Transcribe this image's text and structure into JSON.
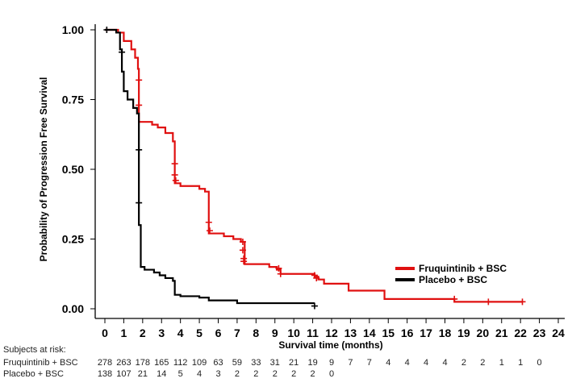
{
  "chart_data": {
    "type": "line",
    "subtype": "kaplan-meier",
    "xlabel": "Survival time (months)",
    "ylabel": "Probability of Progression Free Survival",
    "xlim": [
      0,
      24
    ],
    "ylim": [
      0,
      1
    ],
    "x_ticks": [
      "0",
      "1",
      "2",
      "3",
      "4",
      "5",
      "6",
      "7",
      "8",
      "9",
      "10",
      "11",
      "12",
      "13",
      "14",
      "15",
      "16",
      "17",
      "18",
      "19",
      "20",
      "21",
      "22",
      "23",
      "24"
    ],
    "y_ticks": [
      "0.00",
      "0.25",
      "0.50",
      "0.75",
      "1.00"
    ],
    "legend_position": "right",
    "series": [
      {
        "name": "Fruquintinib + BSC",
        "color": "#e01010",
        "steps": [
          [
            0,
            1.0
          ],
          [
            0.7,
            0.99
          ],
          [
            1.0,
            0.96
          ],
          [
            1.4,
            0.93
          ],
          [
            1.6,
            0.9
          ],
          [
            1.75,
            0.86
          ],
          [
            1.8,
            0.67
          ],
          [
            2.5,
            0.66
          ],
          [
            2.8,
            0.65
          ],
          [
            3.2,
            0.63
          ],
          [
            3.6,
            0.6
          ],
          [
            3.7,
            0.45
          ],
          [
            4.0,
            0.44
          ],
          [
            5.0,
            0.43
          ],
          [
            5.3,
            0.42
          ],
          [
            5.5,
            0.27
          ],
          [
            6.3,
            0.26
          ],
          [
            6.8,
            0.25
          ],
          [
            7.2,
            0.24
          ],
          [
            7.4,
            0.16
          ],
          [
            8.7,
            0.15
          ],
          [
            9.1,
            0.14
          ],
          [
            9.3,
            0.125
          ],
          [
            11.1,
            0.115
          ],
          [
            11.3,
            0.105
          ],
          [
            11.6,
            0.09
          ],
          [
            12.9,
            0.065
          ],
          [
            14.8,
            0.035
          ],
          [
            18.5,
            0.025
          ],
          [
            22.1,
            0.025
          ]
        ],
        "censored": [
          [
            1.8,
            0.82
          ],
          [
            1.8,
            0.73
          ],
          [
            3.7,
            0.52
          ],
          [
            3.7,
            0.48
          ],
          [
            3.75,
            0.46
          ],
          [
            5.5,
            0.31
          ],
          [
            5.55,
            0.28
          ],
          [
            7.3,
            0.24
          ],
          [
            7.3,
            0.21
          ],
          [
            7.35,
            0.18
          ],
          [
            7.35,
            0.17
          ],
          [
            9.2,
            0.145
          ],
          [
            9.3,
            0.125
          ],
          [
            11.1,
            0.12
          ],
          [
            11.2,
            0.11
          ],
          [
            18.5,
            0.035
          ],
          [
            20.3,
            0.025
          ],
          [
            22.1,
            0.025
          ]
        ]
      },
      {
        "name": "Placebo + BSC",
        "color": "#000000",
        "steps": [
          [
            0,
            1.0
          ],
          [
            0.6,
            0.99
          ],
          [
            0.8,
            0.93
          ],
          [
            0.9,
            0.85
          ],
          [
            1.0,
            0.78
          ],
          [
            1.2,
            0.75
          ],
          [
            1.5,
            0.72
          ],
          [
            1.7,
            0.7
          ],
          [
            1.8,
            0.3
          ],
          [
            1.9,
            0.15
          ],
          [
            2.1,
            0.14
          ],
          [
            2.6,
            0.13
          ],
          [
            2.9,
            0.12
          ],
          [
            3.2,
            0.11
          ],
          [
            3.6,
            0.1
          ],
          [
            3.7,
            0.05
          ],
          [
            4.0,
            0.045
          ],
          [
            5.0,
            0.04
          ],
          [
            5.5,
            0.03
          ],
          [
            7.0,
            0.02
          ],
          [
            11.1,
            0.02
          ]
        ],
        "censored": [
          [
            0.1,
            1.0
          ],
          [
            0.9,
            0.92
          ],
          [
            1.8,
            0.57
          ],
          [
            1.8,
            0.38
          ],
          [
            11.1,
            0.01
          ]
        ]
      }
    ],
    "risk_table": {
      "title": "Subjects at risk:",
      "rows": [
        {
          "label": "Fruquintinib + BSC",
          "values": [
            "278",
            "263",
            "178",
            "165",
            "112",
            "109",
            "63",
            "59",
            "33",
            "31",
            "21",
            "19",
            "9",
            "7",
            "7",
            "4",
            "4",
            "4",
            "4",
            "2",
            "2",
            "1",
            "1",
            "0"
          ]
        },
        {
          "label": "Placebo + BSC",
          "values": [
            "138",
            "107",
            "21",
            "14",
            "5",
            "4",
            "3",
            "2",
            "2",
            "2",
            "2",
            "2",
            "0"
          ]
        }
      ]
    }
  }
}
